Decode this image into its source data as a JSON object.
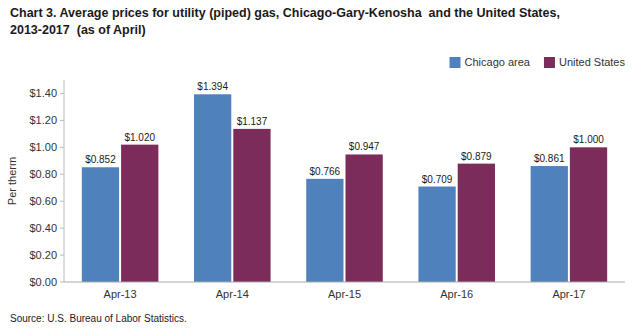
{
  "chart_data": {
    "type": "bar",
    "title": "Chart 3. Average prices for utility (piped) gas, Chicago-Gary-Kenosha  and the United States,\n2013-2017  (as of April)",
    "y_label": "Per therm",
    "annotations": [
      "Source: U.S. Bureau of Labor Statistics."
    ],
    "categories": [
      "Apr-13",
      "Apr-14",
      "Apr-15",
      "Apr-16",
      "Apr-17"
    ],
    "series": [
      {
        "name": "Chicago area",
        "color": "#4F81BD",
        "values": [
          0.852,
          1.394,
          0.766,
          0.709,
          0.861
        ],
        "value_labels": [
          "$0.852",
          "$1.394",
          "$0.766",
          "$0.709",
          "$0.861"
        ]
      },
      {
        "name": "United States",
        "color": "#7B2C5A",
        "values": [
          1.02,
          1.137,
          0.947,
          0.879,
          1.0
        ],
        "value_labels": [
          "$1.020",
          "$1.137",
          "$0.947",
          "$0.879",
          "$1.000"
        ]
      }
    ],
    "ylim": [
      0,
      1.5
    ],
    "yticks": [
      {
        "value": 0.0,
        "label": "$0.00"
      },
      {
        "value": 0.2,
        "label": "$0.20"
      },
      {
        "value": 0.4,
        "label": "$0.40"
      },
      {
        "value": 0.6,
        "label": "$0.60"
      },
      {
        "value": 0.8,
        "label": "$0.80"
      },
      {
        "value": 1.0,
        "label": "$1.00"
      },
      {
        "value": 1.2,
        "label": "$1.20"
      },
      {
        "value": 1.4,
        "label": "$1.40"
      }
    ],
    "grid": false,
    "legend": "upper right",
    "data_labels": true
  }
}
